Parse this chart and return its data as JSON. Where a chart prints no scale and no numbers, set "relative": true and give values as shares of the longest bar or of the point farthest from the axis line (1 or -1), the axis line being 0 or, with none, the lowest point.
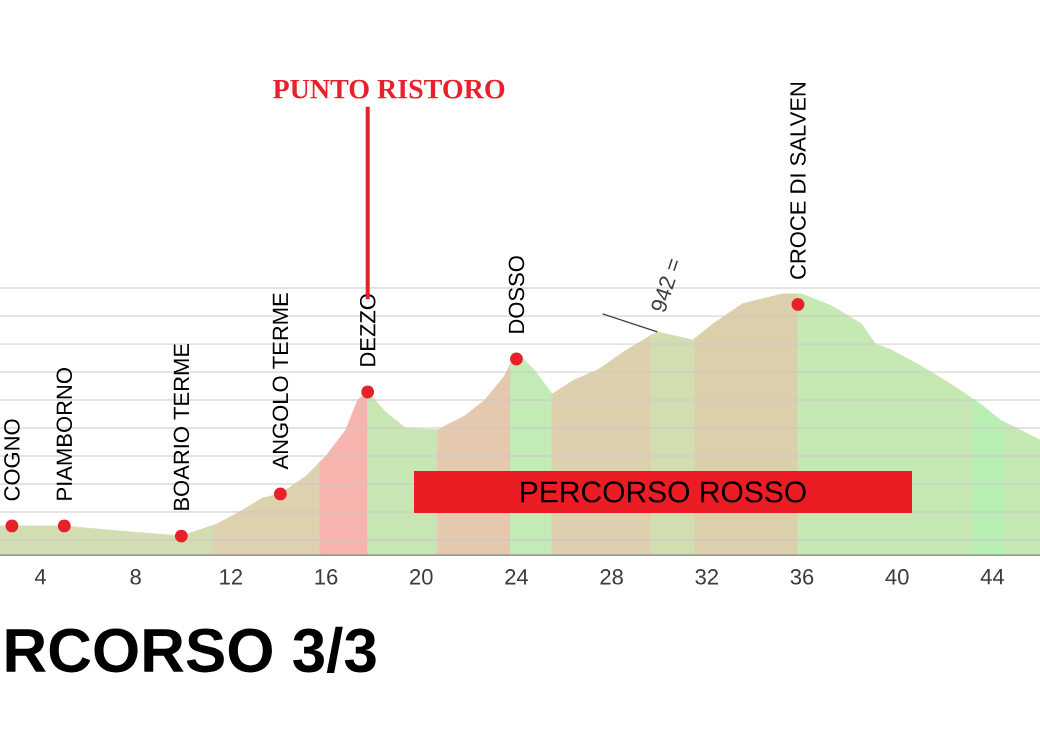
{
  "chart_data": {
    "type": "area",
    "title": "RCORSO 3/3",
    "relative": true,
    "grid": "y",
    "xlim": [
      2.3,
      46
    ],
    "xticks": [
      4,
      8,
      12,
      16,
      20,
      24,
      28,
      32,
      36,
      40,
      44
    ],
    "series": [
      {
        "color": "#d3ddb2",
        "x": [
          2.3,
          5.0,
          6.83,
          9.92,
          11.25
        ],
        "values": [
          0.108,
          0.108,
          0.092,
          0.069,
          0.11
        ]
      },
      {
        "color": "#ddd1b0",
        "x": [
          11.25,
          11.42,
          12.5,
          13.33,
          14.08,
          15.17,
          15.75
        ],
        "values": [
          0.11,
          0.115,
          0.169,
          0.215,
          0.231,
          0.3,
          0.354
        ]
      },
      {
        "color": "#f7b3ae",
        "x": [
          15.75,
          16.0,
          16.83,
          17.33,
          17.75
        ],
        "values": [
          0.354,
          0.377,
          0.477,
          0.592,
          0.623
        ]
      },
      {
        "color": "#c8e6b3",
        "x": [
          17.75,
          18.5,
          19.33,
          20.67
        ],
        "values": [
          0.623,
          0.546,
          0.485,
          0.477
        ]
      },
      {
        "color": "#e5c9ae",
        "x": [
          20.67,
          21.83,
          22.67,
          23.5,
          23.75
        ],
        "values": [
          0.477,
          0.531,
          0.592,
          0.685,
          0.731
        ]
      },
      {
        "color": "#c2ebb6",
        "x": [
          23.75,
          24.0,
          24.75,
          25.5
        ],
        "values": [
          0.731,
          0.777,
          0.708,
          0.615
        ]
      },
      {
        "color": "#dcd0ae",
        "x": [
          25.5,
          26.42,
          27.42,
          28.5,
          29.67
        ],
        "values": [
          0.615,
          0.669,
          0.708,
          0.777,
          0.842
        ]
      },
      {
        "color": "#d3deb0",
        "x": [
          29.67,
          29.75,
          29.92,
          31.42,
          31.5
        ],
        "values": [
          0.842,
          0.846,
          0.854,
          0.823,
          0.829
        ]
      },
      {
        "color": "#dccfac",
        "x": [
          31.5,
          32.25,
          33.5,
          35.17,
          35.83
        ],
        "values": [
          0.829,
          0.885,
          0.962,
          1.0,
          1.0
        ]
      },
      {
        "color": "#c6e8b2",
        "x": [
          35.83,
          36.0,
          37.25,
          38.5,
          39.08,
          39.75,
          41.0,
          42.25,
          43.2
        ],
        "values": [
          1.0,
          1.0,
          0.954,
          0.885,
          0.808,
          0.785,
          0.723,
          0.654,
          0.595
        ]
      },
      {
        "color": "#b8efb2",
        "x": [
          43.2,
          43.5,
          44.33,
          44.5
        ],
        "values": [
          0.595,
          0.577,
          0.515,
          0.507
        ]
      },
      {
        "color": "#c6e8b2",
        "x": [
          44.5,
          45.17,
          46.0
        ],
        "values": [
          0.507,
          0.477,
          0.438
        ]
      }
    ],
    "annotations": [
      {
        "text": "COGNO",
        "x": 2.8,
        "y": 0.108
      },
      {
        "text": "PIAMBORNO",
        "x": 5.0,
        "y": 0.108
      },
      {
        "text": "BOARIO TERME",
        "x": 9.92,
        "y": 0.069
      },
      {
        "text": "ANGOLO TERME",
        "x": 14.08,
        "y": 0.231
      },
      {
        "text": "DEZZO",
        "x": 17.75,
        "y": 0.623
      },
      {
        "text": "DOSSO",
        "x": 24.0,
        "y": 0.75
      },
      {
        "text": "CROCE DI SALVEN",
        "x": 35.83,
        "y": 0.96
      },
      {
        "text": "942 =",
        "x": 29.92,
        "y": 0.854
      },
      "PUNTO RISTORO",
      "PERCORSO ROSSO"
    ]
  }
}
